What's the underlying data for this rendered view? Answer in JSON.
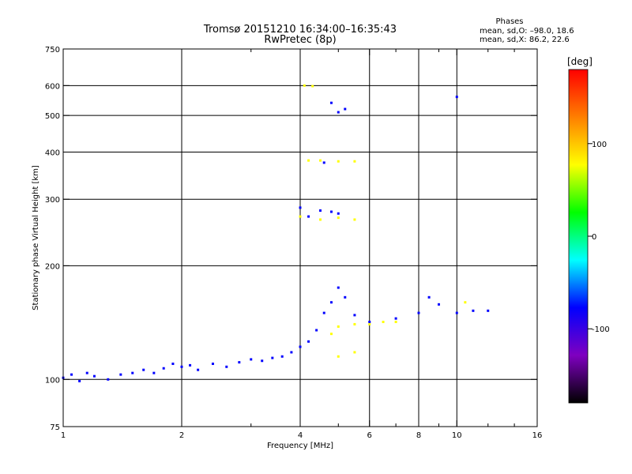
{
  "chart_data": {
    "type": "scatter",
    "title": "Tromsø 20151210 16:34:00–16:35:43",
    "subtitle": "RwPretec (8p)",
    "phase_header": "Phases",
    "phase_stats": [
      "mean, sd,O: –98.0, 18.6",
      "mean, sd,X:  86.2, 22.6"
    ],
    "xlabel": "Frequency [MHz]",
    "ylabel": "Stationary phase Virtual Height [km]",
    "x_scale": "log",
    "y_scale": "log",
    "xlim": [
      1,
      16
    ],
    "ylim": [
      75,
      750
    ],
    "x_ticks": [
      1,
      2,
      4,
      6,
      8,
      10,
      16
    ],
    "x_tick_labels": [
      "1",
      "2",
      "4",
      "6",
      "8",
      "10",
      "16"
    ],
    "x_minor_ticks": [
      3,
      5,
      7,
      9,
      12,
      14
    ],
    "y_ticks": [
      75,
      100,
      200,
      300,
      400,
      500,
      600,
      750
    ],
    "y_tick_labels": [
      "75",
      "100",
      "200",
      "300",
      "400",
      "500",
      "600",
      "750"
    ],
    "y_gridlines": [
      100,
      200,
      300,
      400,
      500,
      600
    ],
    "x_gridlines": [
      2,
      4,
      6,
      8,
      10
    ],
    "grid": true,
    "colorbar": {
      "label": "[deg]",
      "min": -180,
      "max": 180,
      "ticks": [
        100,
        0,
        -100
      ],
      "tick_labels": [
        "100",
        "0",
        "-100"
      ],
      "stops": [
        "#ff0000",
        "#ff7f00",
        "#ffff00",
        "#00ff00",
        "#00ffff",
        "#0000ff",
        "#7f00c0",
        "#000000"
      ]
    },
    "series": [
      {
        "name": "O",
        "color": "#0000ff",
        "points": [
          [
            1.0,
            101
          ],
          [
            1.05,
            103
          ],
          [
            1.1,
            99
          ],
          [
            1.15,
            104
          ],
          [
            1.2,
            102
          ],
          [
            1.3,
            100
          ],
          [
            1.4,
            103
          ],
          [
            1.5,
            104
          ],
          [
            1.6,
            106
          ],
          [
            1.7,
            104
          ],
          [
            1.8,
            107
          ],
          [
            1.9,
            110
          ],
          [
            2.0,
            108
          ],
          [
            2.1,
            109
          ],
          [
            2.2,
            106
          ],
          [
            2.4,
            110
          ],
          [
            2.6,
            108
          ],
          [
            2.8,
            111
          ],
          [
            3.0,
            113
          ],
          [
            3.2,
            112
          ],
          [
            3.4,
            114
          ],
          [
            3.6,
            115
          ],
          [
            3.8,
            118
          ],
          [
            4.0,
            122
          ],
          [
            4.2,
            126
          ],
          [
            4.4,
            135
          ],
          [
            4.6,
            150
          ],
          [
            4.8,
            160
          ],
          [
            5.0,
            175
          ],
          [
            5.2,
            165
          ],
          [
            5.5,
            148
          ],
          [
            6.0,
            142
          ],
          [
            7.0,
            145
          ],
          [
            8.0,
            150
          ],
          [
            8.5,
            165
          ],
          [
            9.0,
            158
          ],
          [
            10.0,
            150
          ],
          [
            11.0,
            152
          ],
          [
            12.0,
            152
          ],
          [
            4.0,
            285
          ],
          [
            4.2,
            270
          ],
          [
            4.5,
            280
          ],
          [
            4.8,
            278
          ],
          [
            5.0,
            275
          ],
          [
            4.6,
            375
          ],
          [
            4.8,
            540
          ],
          [
            5.0,
            510
          ],
          [
            5.2,
            520
          ],
          [
            10.0,
            560
          ]
        ]
      },
      {
        "name": "X",
        "color": "#ffff00",
        "points": [
          [
            4.1,
            600
          ],
          [
            4.3,
            598
          ],
          [
            4.2,
            380
          ],
          [
            4.5,
            380
          ],
          [
            5.0,
            378
          ],
          [
            5.5,
            378
          ],
          [
            4.0,
            270
          ],
          [
            4.5,
            265
          ],
          [
            5.0,
            268
          ],
          [
            5.5,
            265
          ],
          [
            4.8,
            132
          ],
          [
            5.0,
            138
          ],
          [
            5.5,
            140
          ],
          [
            6.0,
            140
          ],
          [
            6.5,
            142
          ],
          [
            7.0,
            142
          ],
          [
            5.0,
            115
          ],
          [
            5.5,
            118
          ],
          [
            10.5,
            160
          ]
        ]
      }
    ]
  }
}
